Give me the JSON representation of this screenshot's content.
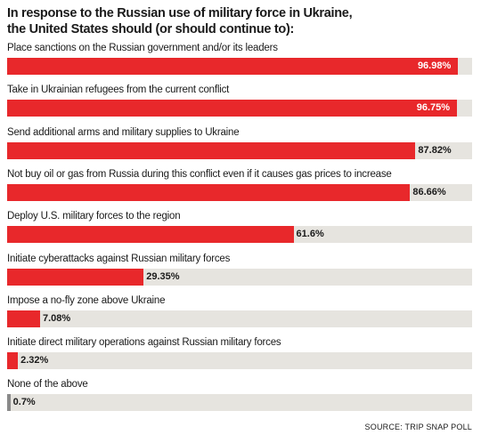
{
  "title_line1": "In response to the Russian use of military force in Ukraine,",
  "title_line2": "the United States should (or should continue to):",
  "source": "SOURCE: TRIP SNAP POLL",
  "colors": {
    "bar": "#e8282b",
    "bar_small": "#8a8a8a",
    "track": "#e6e4df"
  },
  "chart_data": {
    "type": "bar",
    "orientation": "horizontal",
    "xlim": [
      0,
      100
    ],
    "categories": [
      "Place sanctions on the Russian government and/or its leaders",
      "Take in Ukrainian refugees from the current conflict",
      "Send additional arms and military supplies to Ukraine",
      "Not buy oil or gas from Russia during this conflict even if it causes gas prices to increase",
      "Deploy U.S. military forces to the region",
      "Initiate cyberattacks against Russian military forces",
      "Impose a no-fly zone above Ukraine",
      "Initiate direct military operations against Russian military forces",
      "None of the above"
    ],
    "values": [
      96.98,
      96.75,
      87.82,
      86.66,
      61.6,
      29.35,
      7.08,
      2.32,
      0.7
    ],
    "value_labels": [
      "96.98%",
      "96.75%",
      "87.82%",
      "86.66%",
      "61.6%",
      "29.35%",
      "7.08%",
      "2.32%",
      "0.7%"
    ]
  }
}
